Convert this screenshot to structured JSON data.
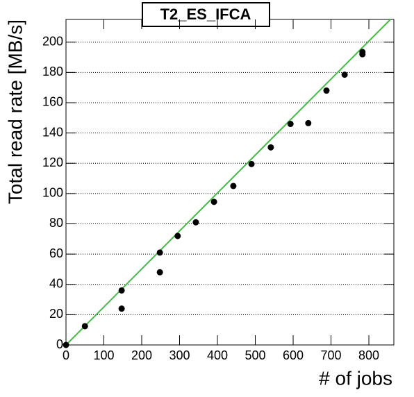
{
  "chart_data": {
    "type": "scatter",
    "title": "T2_ES_IFCA",
    "x_label": "# of jobs",
    "y_label": "Total read rate [MB/s]",
    "x": [
      0,
      50,
      147,
      147,
      248,
      248,
      295,
      343,
      391,
      442,
      490,
      541,
      593,
      640,
      688,
      736,
      783,
      783
    ],
    "values": [
      0,
      12.4,
      36,
      24,
      61,
      48,
      72,
      81,
      94.5,
      105,
      119.5,
      130.5,
      146,
      146.5,
      168,
      178.5,
      192,
      193.5
    ],
    "color": "#000000",
    "fit_line": {
      "x": [
        0,
        857
      ],
      "values": [
        0,
        215
      ],
      "color": "#44bb44"
    },
    "xlim": [
      0,
      866
    ],
    "ylim": [
      0,
      215
    ],
    "xticks": [
      0,
      100,
      200,
      300,
      400,
      500,
      600,
      700,
      800
    ],
    "yticks": [
      0,
      20,
      40,
      60,
      80,
      100,
      120,
      140,
      160,
      180,
      200
    ],
    "grid": true
  }
}
